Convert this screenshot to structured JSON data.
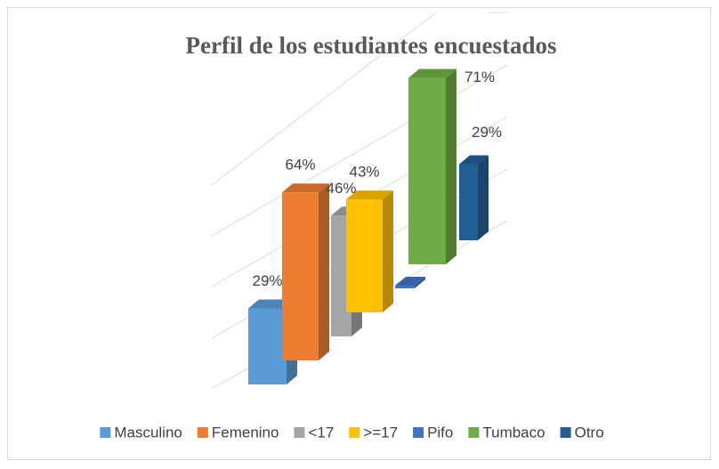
{
  "chart_data": {
    "type": "bar3d",
    "title": "Perfil de los estudiantes encuestados",
    "categories": [
      "Masculino",
      "Femenino",
      "<17",
      ">=17",
      "Pifo",
      "Tumbaco",
      "Otro"
    ],
    "values": [
      29,
      64,
      46,
      43,
      1,
      71,
      29
    ],
    "value_labels": [
      "29%",
      "64%",
      "46%",
      "43%",
      null,
      "71%",
      "29%"
    ],
    "colors": [
      "#5b9bd5",
      "#ed7d31",
      "#a5a5a5",
      "#ffc000",
      "#4472c4",
      "#70ad47",
      "#255e91"
    ],
    "legend": "bottom"
  }
}
